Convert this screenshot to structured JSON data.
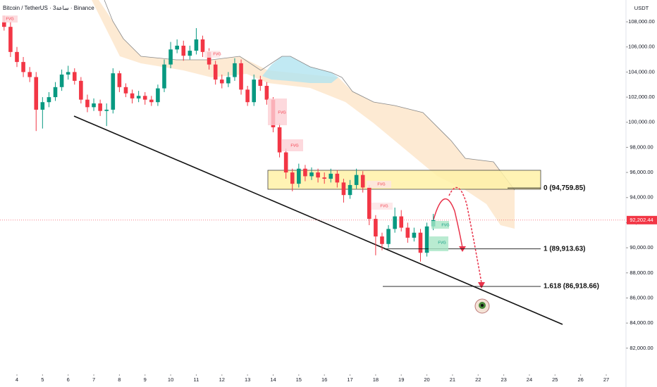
{
  "chart_data": {
    "type": "candlestick",
    "title": "Bitcoin / TetherUS · 3ساعة · Binance",
    "y_axis_label": "USDT",
    "up_color": "#089981",
    "down_color": "#f23645",
    "xlim": [
      3.34,
      27.77
    ],
    "ylim": [
      80700,
      109740
    ],
    "xticks": [
      4,
      5,
      6,
      7,
      8,
      9,
      10,
      11,
      12,
      13,
      14,
      15,
      16,
      17,
      18,
      19,
      20,
      21,
      22,
      23,
      24,
      25,
      26,
      27
    ],
    "yticks": [
      {
        "value": 108000,
        "label": "108,000.00"
      },
      {
        "value": 106000,
        "label": "106,000.00"
      },
      {
        "value": 104000,
        "label": "104,000.00"
      },
      {
        "value": 102000,
        "label": "102,000.00"
      },
      {
        "value": 100000,
        "label": "100,000.00"
      },
      {
        "value": 98000,
        "label": "98,000.00"
      },
      {
        "value": 96000,
        "label": "96,000.00"
      },
      {
        "value": 94000,
        "label": "94,000.00"
      },
      {
        "value": 92000,
        "label": "92,000.00"
      },
      {
        "value": 90000,
        "label": "90,000.00"
      },
      {
        "value": 88000,
        "label": "88,000.00"
      },
      {
        "value": 86000,
        "label": "86,000.00"
      },
      {
        "value": 84000,
        "label": "84,000.00"
      },
      {
        "value": 82000,
        "label": "82,000.00"
      }
    ],
    "last_price": {
      "value": 92202.44,
      "label": "92,202.44"
    },
    "x": [
      3.5,
      3.75,
      4,
      4.25,
      4.5,
      4.75,
      5,
      5.25,
      5.5,
      5.75,
      6,
      6.25,
      6.5,
      6.75,
      7,
      7.25,
      7.5,
      7.75,
      8,
      8.25,
      8.5,
      8.75,
      9,
      9.25,
      9.5,
      9.75,
      10,
      10.25,
      10.5,
      10.75,
      11,
      11.25,
      11.5,
      11.75,
      12,
      12.25,
      12.5,
      12.75,
      13,
      13.25,
      13.5,
      13.75,
      14,
      14.25,
      14.5,
      14.75,
      15,
      15.25,
      15.5,
      15.75,
      16,
      16.25,
      16.5,
      16.75,
      17,
      17.25,
      17.5,
      17.75,
      18,
      18.25,
      18.5,
      18.75,
      19,
      19.25,
      19.5,
      19.75,
      20,
      20.25
    ],
    "open": [
      108000,
      107600,
      105600,
      104800,
      104000,
      103600,
      101000,
      101600,
      102000,
      102800,
      103800,
      104000,
      103300,
      101800,
      101200,
      101500,
      100900,
      101000,
      103900,
      102800,
      102300,
      101900,
      102100,
      101800,
      101600,
      102700,
      104600,
      105800,
      106100,
      105300,
      105700,
      106600,
      105600,
      104600,
      103400,
      103100,
      103600,
      104700,
      102600,
      101600,
      103400,
      102900,
      101800,
      99600,
      97600,
      96000,
      95100,
      96300,
      95700,
      96000,
      95600,
      95500,
      95900,
      95200,
      94200,
      95000,
      95800,
      94800,
      92300,
      90900,
      90300,
      91500,
      92500,
      91600,
      90800,
      91200,
      89600,
      91700
    ],
    "high": [
      108500,
      108000,
      106000,
      105200,
      104400,
      104000,
      102000,
      102400,
      103200,
      104200,
      104500,
      104300,
      103600,
      102200,
      101900,
      101800,
      101500,
      104300,
      104100,
      103100,
      102600,
      102500,
      102400,
      102100,
      103000,
      105000,
      106400,
      106600,
      106500,
      106100,
      107500,
      106900,
      105900,
      104900,
      103800,
      104000,
      105100,
      105000,
      102900,
      103800,
      103700,
      103200,
      102000,
      99900,
      97900,
      96300,
      96700,
      96600,
      96400,
      96300,
      96000,
      96300,
      96200,
      95500,
      95400,
      96300,
      96100,
      95000,
      92600,
      91200,
      91800,
      93200,
      93000,
      92000,
      91600,
      91500,
      92000,
      92700
    ],
    "low": [
      107300,
      105200,
      104400,
      103600,
      103200,
      99300,
      99500,
      101200,
      101700,
      102500,
      103400,
      103000,
      101500,
      100800,
      100900,
      100500,
      99700,
      100700,
      102400,
      102000,
      101500,
      101600,
      101400,
      101300,
      101300,
      102400,
      104300,
      105500,
      104900,
      105000,
      105400,
      105200,
      104200,
      103000,
      102700,
      102800,
      103300,
      102200,
      101300,
      101300,
      102500,
      101400,
      99200,
      97200,
      95500,
      94500,
      94800,
      95300,
      95400,
      95200,
      95100,
      95200,
      94800,
      93600,
      93900,
      94700,
      94400,
      91800,
      89400,
      89800,
      90000,
      91200,
      91300,
      90400,
      90500,
      88900,
      89300,
      91400
    ],
    "close": [
      107600,
      105600,
      104800,
      104000,
      103600,
      101000,
      101600,
      102000,
      102800,
      103800,
      104000,
      103300,
      101800,
      101200,
      101500,
      100900,
      101000,
      103900,
      102800,
      102300,
      101900,
      102100,
      101800,
      101600,
      102700,
      104600,
      105800,
      106100,
      105300,
      105700,
      106600,
      105600,
      104600,
      103400,
      103100,
      103600,
      104700,
      102600,
      101600,
      103400,
      102900,
      101800,
      99600,
      97600,
      96000,
      95100,
      96300,
      95700,
      96000,
      95600,
      95500,
      95900,
      95200,
      94200,
      95000,
      95800,
      94800,
      92300,
      90900,
      90300,
      91500,
      92500,
      91600,
      90800,
      91200,
      89600,
      91700,
      92202.44
    ],
    "levels": [
      {
        "label": "0 (94,759.85)",
        "value": 94759.85
      },
      {
        "label": "1 (89,913.63)",
        "value": 89913.63
      },
      {
        "label": "1.618 (86,918.66)",
        "value": 86918.66
      }
    ],
    "fvg_labels": [
      "FVG",
      "FVG",
      "FVG",
      "FVG",
      "FVG",
      "FVG",
      "FVG",
      "FVG"
    ]
  }
}
